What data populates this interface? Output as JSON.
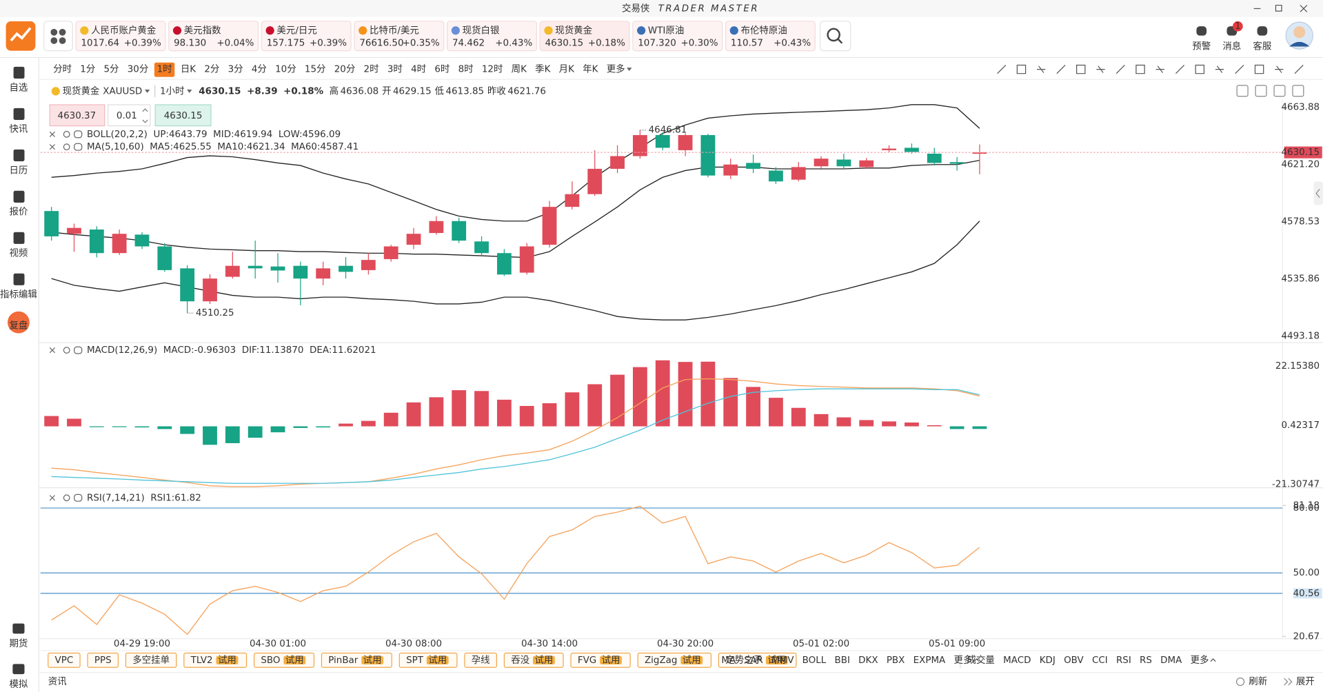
{
  "header": {
    "app_name": "交易侠",
    "app_name_en": "TRADER MASTER",
    "tickers": [
      {
        "name": "人民币账户黄金",
        "price": "1017.64",
        "change": "+0.39%"
      },
      {
        "name": "美元指数",
        "price": "98.130",
        "change": "+0.04%"
      },
      {
        "name": "美元/日元",
        "price": "157.175",
        "change": "+0.39%"
      },
      {
        "name": "比特币/美元",
        "price": "76616.50",
        "change": "+0.35%"
      },
      {
        "name": "现货白银",
        "price": "74.462",
        "change": "+0.43%"
      },
      {
        "name": "现货黄金",
        "price": "4630.15",
        "change": "+0.18%"
      },
      {
        "name": "WTI原油",
        "price": "107.320",
        "change": "+0.30%"
      },
      {
        "name": "布伦特原油",
        "price": "110.57",
        "change": "+0.43%"
      }
    ],
    "actions": [
      {
        "label": "预警"
      },
      {
        "label": "消息",
        "badge": "1"
      },
      {
        "label": "客服"
      }
    ]
  },
  "sidebar": {
    "items": [
      "自选",
      "快讯",
      "日历",
      "报价",
      "视频",
      "指标编辑"
    ],
    "replay": "复盘",
    "bottom_items": [
      "期货",
      "模拟"
    ]
  },
  "toolbar": {
    "timeframes": [
      {
        "label": "分时"
      },
      {
        "label": "1分"
      },
      {
        "label": "5分"
      },
      {
        "label": "30分"
      },
      {
        "label": "1时",
        "active": true
      },
      {
        "label": "日K"
      },
      {
        "label": "2分"
      },
      {
        "label": "3分"
      },
      {
        "label": "4分"
      },
      {
        "label": "10分"
      },
      {
        "label": "15分"
      },
      {
        "label": "20分"
      },
      {
        "label": "2时"
      },
      {
        "label": "3时"
      },
      {
        "label": "4时"
      },
      {
        "label": "6时"
      },
      {
        "label": "8时"
      },
      {
        "label": "12时"
      },
      {
        "label": "周K"
      },
      {
        "label": "季K"
      },
      {
        "label": "月K"
      },
      {
        "label": "年K"
      }
    ],
    "more": "更多"
  },
  "symbol": {
    "name": "现货黄金",
    "code": "XAUUSD",
    "period": "1小时",
    "price": "4630.15",
    "change": "+8.39",
    "change_pct": "+0.18%",
    "stats": [
      {
        "label": "高",
        "value": "4636.08"
      },
      {
        "label": "开",
        "value": "4629.15"
      },
      {
        "label": "低",
        "value": "4613.85"
      },
      {
        "label": "昨收",
        "value": "4621.76"
      }
    ]
  },
  "order": {
    "sell": "4630.37",
    "lots": "0.01",
    "buy": "4630.15"
  },
  "chart_data": [
    {
      "type": "candlestick",
      "up_color": "#e04b5a",
      "down_color": "#17a385",
      "categories": [
        null,
        null,
        null,
        null,
        "04-29 19:00",
        null,
        null,
        null,
        null,
        null,
        "04-30 01:00",
        null,
        null,
        null,
        null,
        null,
        "04-30 08:00",
        null,
        null,
        null,
        null,
        null,
        "04-30 14:00",
        null,
        null,
        null,
        null,
        null,
        "04-30 20:00",
        null,
        null,
        null,
        null,
        null,
        "05-01 02:00",
        null,
        null,
        null,
        null,
        null,
        "05-01 09:00",
        null
      ],
      "candles": [
        {
          "open": 4586.4,
          "high": 4589.5,
          "low": 4564.3,
          "close": 4567.5
        },
        {
          "open": 4569.4,
          "high": 4577.0,
          "low": 4556.0,
          "close": 4573.8
        },
        {
          "open": 4572.6,
          "high": 4575.0,
          "low": 4551.8,
          "close": 4555.0
        },
        {
          "open": 4555.0,
          "high": 4572.6,
          "low": 4553.6,
          "close": 4569.4
        },
        {
          "open": 4568.8,
          "high": 4570.6,
          "low": 4558.1,
          "close": 4560.0
        },
        {
          "open": 4560.0,
          "high": 4562.5,
          "low": 4541.0,
          "close": 4542.3
        },
        {
          "open": 4543.6,
          "high": 4546.0,
          "low": 4510.25,
          "close": 4519.0
        },
        {
          "open": 4519.0,
          "high": 4539.2,
          "low": 4517.0,
          "close": 4536.0
        },
        {
          "open": 4537.3,
          "high": 4556.0,
          "low": 4536.0,
          "close": 4545.5
        },
        {
          "open": 4545.5,
          "high": 4564.3,
          "low": 4536.0,
          "close": 4543.6
        },
        {
          "open": 4545.0,
          "high": 4555.0,
          "low": 4533.0,
          "close": 4542.0
        },
        {
          "open": 4545.5,
          "high": 4548.6,
          "low": 4516.0,
          "close": 4536.0
        },
        {
          "open": 4536.0,
          "high": 4548.6,
          "low": 4531.0,
          "close": 4543.6
        },
        {
          "open": 4545.5,
          "high": 4552.0,
          "low": 4536.0,
          "close": 4541.0
        },
        {
          "open": 4542.3,
          "high": 4555.0,
          "low": 4539.0,
          "close": 4549.9
        },
        {
          "open": 4550.5,
          "high": 4561.2,
          "low": 4548.6,
          "close": 4560.0
        },
        {
          "open": 4561.2,
          "high": 4573.8,
          "low": 4558.0,
          "close": 4569.4
        },
        {
          "open": 4570.0,
          "high": 4582.6,
          "low": 4568.8,
          "close": 4578.9
        },
        {
          "open": 4578.9,
          "high": 4581.4,
          "low": 4562.5,
          "close": 4564.3
        },
        {
          "open": 4563.7,
          "high": 4567.5,
          "low": 4553.6,
          "close": 4555.0
        },
        {
          "open": 4555.0,
          "high": 4558.0,
          "low": 4537.9,
          "close": 4539.0
        },
        {
          "open": 4540.4,
          "high": 4562.5,
          "low": 4539.0,
          "close": 4560.0
        },
        {
          "open": 4561.2,
          "high": 4594.0,
          "low": 4559.2,
          "close": 4589.5
        },
        {
          "open": 4589.5,
          "high": 4608.5,
          "low": 4587.6,
          "close": 4599.0
        },
        {
          "open": 4599.0,
          "high": 4631.8,
          "low": 4597.7,
          "close": 4617.9
        },
        {
          "open": 4617.9,
          "high": 4635.5,
          "low": 4614.7,
          "close": 4627.4
        },
        {
          "open": 4627.4,
          "high": 4646.81,
          "low": 4625.5,
          "close": 4643.1
        },
        {
          "open": 4643.1,
          "high": 4645.0,
          "low": 4631.8,
          "close": 4633.6
        },
        {
          "open": 4631.8,
          "high": 4644.4,
          "low": 4627.4,
          "close": 4643.1
        },
        {
          "open": 4643.1,
          "high": 4644.0,
          "low": 4611.6,
          "close": 4612.9
        },
        {
          "open": 4612.9,
          "high": 4625.5,
          "low": 4610.3,
          "close": 4621.1
        },
        {
          "open": 4622.3,
          "high": 4628.6,
          "low": 4614.7,
          "close": 4617.9
        },
        {
          "open": 4616.6,
          "high": 4619.2,
          "low": 4606.6,
          "close": 4608.5
        },
        {
          "open": 4609.8,
          "high": 4623.0,
          "low": 4608.5,
          "close": 4619.2
        },
        {
          "open": 4619.8,
          "high": 4627.4,
          "low": 4617.9,
          "close": 4625.5
        },
        {
          "open": 4624.8,
          "high": 4629.2,
          "low": 4617.9,
          "close": 4619.8
        },
        {
          "open": 4619.2,
          "high": 4626.0,
          "low": 4617.9,
          "close": 4624.2
        },
        {
          "open": 4631.8,
          "high": 4635.5,
          "low": 4630.5,
          "close": 4633.0
        },
        {
          "open": 4633.6,
          "high": 4636.8,
          "low": 4629.2,
          "close": 4630.5
        },
        {
          "open": 4629.2,
          "high": 4633.6,
          "low": 4620.4,
          "close": 4622.3
        },
        {
          "open": 4622.9,
          "high": 4626.7,
          "low": 4616.6,
          "close": 4621.7
        },
        {
          "open": 4629.15,
          "high": 4636.08,
          "low": 4613.85,
          "close": 4630.15
        }
      ],
      "series": [
        {
          "color": "#222222",
          "values": [
            4611.6,
            4612.9,
            4614.7,
            4616.0,
            4617.9,
            4621.9,
            4626.3,
            4627.6,
            4626.9,
            4624.8,
            4622.3,
            4620.4,
            4614.7,
            4610.3,
            4606.6,
            4600.3,
            4594.0,
            4587.6,
            4582.6,
            4580.1,
            4578.9,
            4578.9,
            4585.1,
            4597.7,
            4611.6,
            4623.0,
            4633.6,
            4644.4,
            4650.6,
            4655.7,
            4657.5,
            4658.8,
            4659.5,
            4660.1,
            4660.7,
            4661.4,
            4662.0,
            4663.3,
            4665.8,
            4665.8,
            4663.3,
            4648.1
          ]
        },
        {
          "color": "#222222",
          "values": [
            4570.6,
            4568.8,
            4567.5,
            4566.2,
            4564.3,
            4561.2,
            4559.3,
            4558.0,
            4557.4,
            4556.8,
            4556.8,
            4556.1,
            4556.1,
            4555.5,
            4554.9,
            4554.9,
            4554.2,
            4554.2,
            4553.6,
            4553.0,
            4552.3,
            4551.7,
            4556.1,
            4567.5,
            4578.2,
            4589.5,
            4602.2,
            4611.6,
            4616.6,
            4619.2,
            4619.2,
            4619.2,
            4617.9,
            4617.9,
            4617.9,
            4617.9,
            4618.5,
            4618.5,
            4620.4,
            4621.1,
            4621.1,
            4624.2
          ]
        },
        {
          "color": "#222222",
          "values": [
            4536.0,
            4531.0,
            4528.5,
            4526.5,
            4529.7,
            4532.8,
            4529.7,
            4526.5,
            4523.4,
            4522.1,
            4522.1,
            4520.9,
            4522.1,
            4522.1,
            4520.9,
            4520.2,
            4519.0,
            4517.1,
            4517.1,
            4518.3,
            4522.1,
            4522.1,
            4519.6,
            4515.8,
            4512.1,
            4507.7,
            4505.8,
            4505.1,
            4505.1,
            4507.0,
            4509.5,
            4512.7,
            4515.8,
            4519.6,
            4524.0,
            4527.8,
            4532.2,
            4536.6,
            4541.0,
            4547.3,
            4561.2,
            4578.9
          ]
        }
      ],
      "ylim": [
        4488.8,
        4669.5
      ],
      "yticks": [
        4663.88,
        {
          "value": 4621.2,
          "label": "4621.20"
        },
        4578.53,
        4535.86,
        4493.18
      ],
      "last_price": 4630.15,
      "legend": [
        [
          {
            "text": "BOLL(20,2,2)",
            "color": "#333333"
          },
          {
            "text": "UP:4643.79",
            "color": "#333333"
          },
          {
            "text": "MID:4619.94",
            "color": "#333333"
          },
          {
            "text": "LOW:4596.09",
            "color": "#333333"
          }
        ],
        [
          {
            "text": "MA(5,10,60)",
            "color": "#333333"
          },
          {
            "text": "MA5:4625.55",
            "color": "#f39a3c"
          },
          {
            "text": "MA10:4621.34",
            "color": "#3cbcd6"
          },
          {
            "text": "MA60:4587.41",
            "color": "#a58fe0"
          }
        ]
      ]
    },
    {
      "type": "macd",
      "up_color": "#e04b5a",
      "down_color": "#17a385",
      "values": [
        3.8,
        2.8,
        -0.3,
        -0.3,
        -0.4,
        -1.0,
        -2.8,
        -6.8,
        -6.2,
        -4.2,
        -2.2,
        -0.6,
        -0.4,
        1.0,
        2.0,
        5.0,
        8.8,
        10.7,
        13.3,
        13.0,
        9.8,
        7.5,
        8.5,
        12.5,
        15.5,
        19.0,
        21.8,
        24.3,
        23.7,
        23.8,
        17.8,
        14.5,
        10.5,
        6.8,
        4.5,
        3.3,
        2.3,
        1.8,
        1.4,
        0.4,
        -1.0,
        -0.96303
      ],
      "series": [
        {
          "color": "#f5a35c",
          "values": [
            -15.4,
            -16.0,
            -17.0,
            -17.9,
            -18.8,
            -19.8,
            -20.7,
            -21.9,
            -22.2,
            -22.2,
            -21.9,
            -21.3,
            -21.0,
            -20.7,
            -20.4,
            -19.1,
            -17.6,
            -15.7,
            -14.2,
            -12.3,
            -10.8,
            -9.8,
            -8.6,
            -5.5,
            -1.4,
            3.2,
            8.5,
            14.1,
            17.2,
            17.5,
            17.2,
            16.6,
            15.6,
            15.0,
            14.7,
            14.4,
            14.1,
            14.1,
            14.1,
            13.8,
            13.1,
            11.1387
          ]
        },
        {
          "color": "#4fc3d9",
          "values": [
            -18.5,
            -18.8,
            -19.1,
            -19.4,
            -19.8,
            -20.1,
            -20.4,
            -20.7,
            -21.0,
            -21.0,
            -21.0,
            -21.0,
            -21.0,
            -20.7,
            -20.4,
            -19.8,
            -18.8,
            -17.9,
            -17.0,
            -15.7,
            -14.8,
            -13.6,
            -12.3,
            -10.1,
            -7.7,
            -4.5,
            -1.4,
            2.3,
            5.4,
            8.5,
            11.0,
            12.5,
            13.1,
            13.5,
            13.8,
            13.8,
            13.8,
            13.8,
            13.8,
            13.5,
            13.5,
            11.62021
          ]
        }
      ],
      "ylim": [
        -22.6,
        30.5
      ],
      "yticks": [
        {
          "value": 22.1538,
          "label": "22.15380"
        },
        0.42317,
        -21.30747
      ],
      "legend": [
        [
          {
            "text": "MACD(12,26,9)",
            "color": "#333333"
          },
          {
            "text": "MACD:-0.96303",
            "color": "#a58fe0"
          },
          {
            "text": "DIF:11.13870",
            "color": "#f39a3c"
          },
          {
            "text": "DEA:11.62021",
            "color": "#3cbcd6"
          }
        ]
      ]
    },
    {
      "type": "line",
      "series": [
        {
          "color": "#f5a35c",
          "values": [
            28.2,
            34.8,
            26.2,
            39.9,
            36.0,
            30.9,
            21.6,
            35.6,
            41.8,
            43.8,
            41.0,
            36.8,
            41.8,
            43.8,
            50.4,
            58.2,
            64.4,
            68.3,
            57.4,
            49.6,
            37.9,
            54.3,
            66.8,
            69.9,
            76.1,
            78.1,
            80.8,
            73.0,
            76.1,
            54.3,
            57.4,
            55.5,
            50.4,
            55.5,
            59.0,
            54.7,
            58.2,
            64.0,
            59.4,
            52.3,
            53.5,
            61.82
          ]
        }
      ],
      "ylim": [
        19.6,
        88.6
      ],
      "yticks": [
        81.18,
        20.67
      ],
      "levels": [
        {
          "value": 80,
          "label": "80.00"
        },
        {
          "value": 50,
          "label": "50.00"
        },
        {
          "value": 40.56,
          "label": "40.56"
        }
      ],
      "legend": [
        [
          {
            "text": "RSI(7,14,21)",
            "color": "#333333"
          },
          {
            "text": "RSI1:61.82",
            "color": "#f39a3c"
          }
        ]
      ]
    }
  ],
  "indicator_bar": {
    "buttons": [
      {
        "label": "VPC"
      },
      {
        "label": "PPS"
      },
      {
        "label": "多空挂单"
      },
      {
        "label": "TLV2",
        "badge": "试用"
      },
      {
        "label": "SBO",
        "badge": "试用"
      },
      {
        "label": "PinBar",
        "badge": "试用"
      },
      {
        "label": "SPT",
        "badge": "试用"
      },
      {
        "label": "孕线"
      },
      {
        "label": "吞没",
        "badge": "试用"
      },
      {
        "label": "FVG",
        "badge": "试用"
      },
      {
        "label": "ZigZag",
        "badge": "试用"
      },
      {
        "label": "定势之矛",
        "badge": "试用"
      }
    ],
    "main": [
      "MA",
      "SAR",
      "MMV",
      "BOLL",
      "BBI",
      "DKX",
      "PBX",
      "EXPMA",
      "更多"
    ],
    "sub": [
      "成交量",
      "MACD",
      "KDJ",
      "OBV",
      "CCI",
      "RSI",
      "RS",
      "DMA",
      "更多"
    ]
  },
  "footer": {
    "news": "资讯",
    "refresh": "刷新",
    "expand": "展开"
  }
}
